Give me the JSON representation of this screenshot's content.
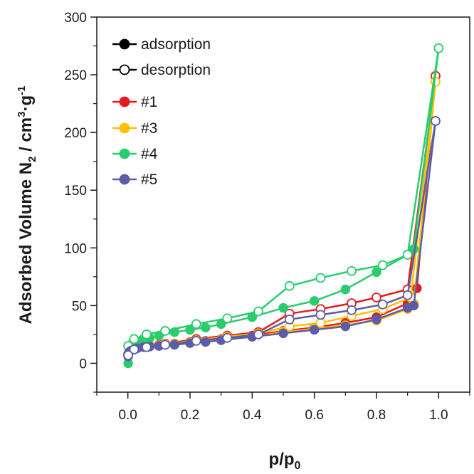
{
  "chart_data": {
    "type": "line",
    "title": "",
    "xlabel": {
      "main": "p/p",
      "sub": "0"
    },
    "ylabel": {
      "a": "Adsorbed Volume N",
      "sub": "2",
      "b": " / cm",
      "sup1": "3",
      "c": "·g",
      "sup2": "-1"
    },
    "xlim": [
      -0.1,
      1.1
    ],
    "ylim": [
      -25,
      300
    ],
    "xticks": [
      "0.0",
      "0.2",
      "0.4",
      "0.6",
      "0.8",
      "1.0"
    ],
    "yticks": [
      "0",
      "50",
      "100",
      "150",
      "200",
      "250",
      "300"
    ],
    "grid": false,
    "legend_position": "top-left",
    "legend_markers": [
      {
        "label": "adsorption",
        "filled": true
      },
      {
        "label": "desorption",
        "filled": false
      }
    ],
    "series": [
      {
        "name": "#1",
        "color": "#e31a1c",
        "adsorption": [
          [
            0.001,
            8
          ],
          [
            0.005,
            11
          ],
          [
            0.01,
            12
          ],
          [
            0.02,
            13
          ],
          [
            0.03,
            14
          ],
          [
            0.05,
            15
          ],
          [
            0.07,
            15.5
          ],
          [
            0.1,
            16
          ],
          [
            0.15,
            17
          ],
          [
            0.2,
            18.5
          ],
          [
            0.25,
            19.5
          ],
          [
            0.3,
            21
          ],
          [
            0.4,
            24
          ],
          [
            0.5,
            28
          ],
          [
            0.6,
            31
          ],
          [
            0.7,
            35
          ],
          [
            0.8,
            40
          ],
          [
            0.9,
            52
          ],
          [
            0.93,
            65
          ],
          [
            0.99,
            249
          ]
        ],
        "desorption": [
          [
            0.99,
            249
          ],
          [
            0.9,
            64
          ],
          [
            0.8,
            57
          ],
          [
            0.72,
            52
          ],
          [
            0.62,
            47
          ],
          [
            0.52,
            43
          ],
          [
            0.42,
            27
          ],
          [
            0.32,
            24
          ],
          [
            0.22,
            21
          ],
          [
            0.12,
            17
          ],
          [
            0.06,
            15
          ],
          [
            0.02,
            13
          ],
          [
            0.001,
            8
          ]
        ]
      },
      {
        "name": "#3",
        "color": "#ffc000",
        "adsorption": [
          [
            0.001,
            7
          ],
          [
            0.005,
            10
          ],
          [
            0.01,
            11
          ],
          [
            0.02,
            12
          ],
          [
            0.03,
            13
          ],
          [
            0.05,
            14
          ],
          [
            0.07,
            15
          ],
          [
            0.1,
            15.5
          ],
          [
            0.15,
            16.5
          ],
          [
            0.2,
            18
          ],
          [
            0.25,
            19
          ],
          [
            0.3,
            20.5
          ],
          [
            0.4,
            23
          ],
          [
            0.5,
            27
          ],
          [
            0.6,
            30
          ],
          [
            0.7,
            33
          ],
          [
            0.8,
            37
          ],
          [
            0.9,
            47
          ],
          [
            0.92,
            52
          ],
          [
            0.99,
            244
          ]
        ],
        "desorption": [
          [
            0.99,
            244
          ],
          [
            0.91,
            57
          ],
          [
            0.82,
            47
          ],
          [
            0.72,
            41
          ],
          [
            0.62,
            35
          ],
          [
            0.52,
            32
          ],
          [
            0.42,
            26
          ],
          [
            0.32,
            23
          ],
          [
            0.22,
            20
          ],
          [
            0.12,
            16.5
          ],
          [
            0.06,
            14.5
          ],
          [
            0.02,
            12
          ],
          [
            0.001,
            7
          ]
        ]
      },
      {
        "name": "#4",
        "color": "#2bcc6e",
        "adsorption": [
          [
            0.001,
            0
          ],
          [
            0.005,
            14
          ],
          [
            0.01,
            16
          ],
          [
            0.02,
            18
          ],
          [
            0.03,
            19
          ],
          [
            0.05,
            21
          ],
          [
            0.07,
            22
          ],
          [
            0.1,
            24
          ],
          [
            0.15,
            27
          ],
          [
            0.2,
            29
          ],
          [
            0.25,
            31
          ],
          [
            0.3,
            34
          ],
          [
            0.4,
            40
          ],
          [
            0.5,
            48
          ],
          [
            0.6,
            54
          ],
          [
            0.7,
            64
          ],
          [
            0.8,
            79
          ],
          [
            0.9,
            94
          ],
          [
            0.92,
            99
          ],
          [
            1.0,
            273
          ]
        ],
        "desorption": [
          [
            1.0,
            273
          ],
          [
            0.9,
            94
          ],
          [
            0.82,
            85
          ],
          [
            0.72,
            80
          ],
          [
            0.62,
            74
          ],
          [
            0.52,
            67
          ],
          [
            0.42,
            45
          ],
          [
            0.32,
            39
          ],
          [
            0.22,
            34
          ],
          [
            0.12,
            28
          ],
          [
            0.06,
            25
          ],
          [
            0.02,
            21
          ],
          [
            0.001,
            15
          ]
        ]
      },
      {
        "name": "#5",
        "color": "#5b5ea6",
        "adsorption": [
          [
            0.001,
            6
          ],
          [
            0.005,
            10
          ],
          [
            0.01,
            11
          ],
          [
            0.02,
            12
          ],
          [
            0.03,
            13
          ],
          [
            0.05,
            14
          ],
          [
            0.07,
            14.5
          ],
          [
            0.1,
            15
          ],
          [
            0.15,
            16
          ],
          [
            0.2,
            17.5
          ],
          [
            0.25,
            18.5
          ],
          [
            0.3,
            20
          ],
          [
            0.4,
            23
          ],
          [
            0.5,
            26
          ],
          [
            0.6,
            29
          ],
          [
            0.7,
            32
          ],
          [
            0.8,
            38
          ],
          [
            0.9,
            48
          ],
          [
            0.92,
            50
          ],
          [
            0.99,
            210
          ]
        ],
        "desorption": [
          [
            0.99,
            210
          ],
          [
            0.9,
            59
          ],
          [
            0.82,
            51
          ],
          [
            0.72,
            46
          ],
          [
            0.62,
            42
          ],
          [
            0.52,
            38
          ],
          [
            0.42,
            25
          ],
          [
            0.32,
            22
          ],
          [
            0.22,
            19.5
          ],
          [
            0.12,
            16
          ],
          [
            0.06,
            14
          ],
          [
            0.02,
            12
          ],
          [
            0.001,
            7
          ]
        ]
      }
    ]
  }
}
